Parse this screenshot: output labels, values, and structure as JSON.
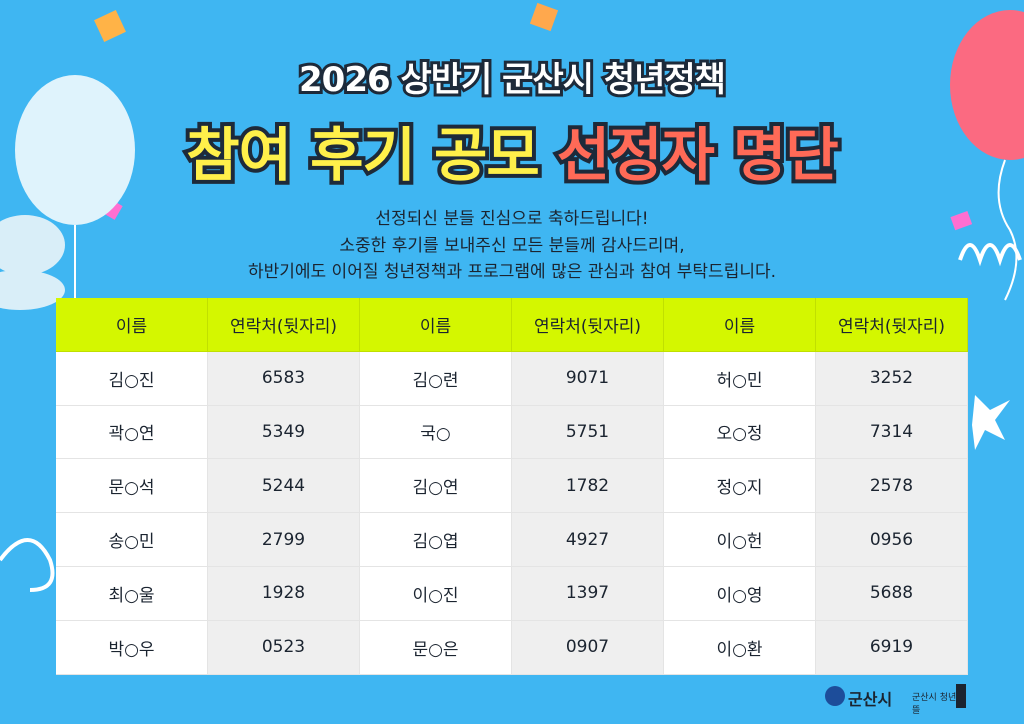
{
  "header": {
    "subtitle": "2026 상반기 군산시 청년정책",
    "title_main": "참여 후기 공모",
    "title_accent": "선정자 명단"
  },
  "message": [
    "선정되신 분들 진심으로 축하드립니다!",
    "소중한 후기를 보내주신 모든 분들께 감사드리며,",
    "하반기에도 이어질 청년정책과 프로그램에 많은 관심과 참여 부탁드립니다."
  ],
  "table": {
    "headers": [
      "이름",
      "연락처(뒷자리)",
      "이름",
      "연락처(뒷자리)",
      "이름",
      "연락처(뒷자리)"
    ],
    "rows": [
      [
        "김○진",
        "6583",
        "김○련",
        "9071",
        "허○민",
        "3252"
      ],
      [
        "곽○연",
        "5349",
        "국○",
        "5751",
        "오○정",
        "7314"
      ],
      [
        "문○석",
        "5244",
        "김○연",
        "1782",
        "정○지",
        "2578"
      ],
      [
        "송○민",
        "2799",
        "김○엽",
        "4927",
        "이○헌",
        "0956"
      ],
      [
        "최○울",
        "1928",
        "이○진",
        "1397",
        "이○영",
        "5688"
      ],
      [
        "박○우",
        "0523",
        "문○은",
        "0907",
        "이○환",
        "6919"
      ]
    ]
  },
  "footer": {
    "logo_city": "군산시",
    "logo_youth": "군산시 청년뜰"
  }
}
